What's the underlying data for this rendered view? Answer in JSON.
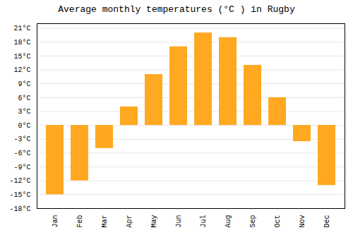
{
  "chart_data": {
    "type": "bar",
    "title": "Average monthly temperatures (°C ) in Rugby",
    "categories": [
      "Jan",
      "Feb",
      "Mar",
      "Apr",
      "May",
      "Jun",
      "Jul",
      "Aug",
      "Sep",
      "Oct",
      "Nov",
      "Dec"
    ],
    "values": [
      -15,
      -12,
      -5,
      4,
      11,
      17,
      20,
      19,
      13,
      6,
      -3.5,
      -13
    ],
    "color": "#FFA820",
    "ylim": [
      -18,
      22
    ],
    "yticks": [
      {
        "value": -18,
        "label": "-18°C"
      },
      {
        "value": -15,
        "label": "-15°C"
      },
      {
        "value": -12,
        "label": "-12°C"
      },
      {
        "value": -9,
        "label": "-9°C"
      },
      {
        "value": -6,
        "label": "-6°C"
      },
      {
        "value": -3,
        "label": "-3°C"
      },
      {
        "value": 0,
        "label": "0°C"
      },
      {
        "value": 3,
        "label": "3°C"
      },
      {
        "value": 6,
        "label": "6°C"
      },
      {
        "value": 9,
        "label": "9°C"
      },
      {
        "value": 12,
        "label": "12°C"
      },
      {
        "value": 15,
        "label": "15°C"
      },
      {
        "value": 18,
        "label": "18°C"
      },
      {
        "value": 21,
        "label": "21°C"
      }
    ],
    "grid": true
  }
}
